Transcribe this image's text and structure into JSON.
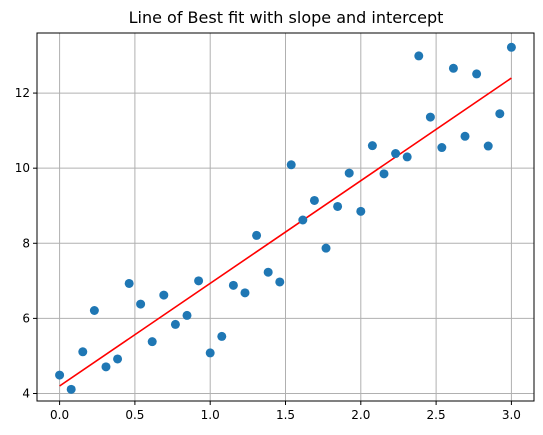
{
  "chart_data": {
    "type": "scatter",
    "title": "Line of Best fit with slope and intercept",
    "xlabel": "",
    "ylabel": "",
    "xlim": [
      -0.15,
      3.15
    ],
    "ylim": [
      3.8,
      13.6
    ],
    "grid": true,
    "x_ticks": [
      0.0,
      0.5,
      1.0,
      1.5,
      2.0,
      2.5,
      3.0
    ],
    "x_tick_labels": [
      "0.0",
      "0.5",
      "1.0",
      "1.5",
      "2.0",
      "2.5",
      "3.0"
    ],
    "y_ticks": [
      4,
      6,
      8,
      10,
      12
    ],
    "y_tick_labels": [
      "4",
      "6",
      "8",
      "10",
      "12"
    ],
    "series": [
      {
        "kind": "scatter",
        "color": "#1f77b4",
        "x": [
          0.0,
          0.077,
          0.154,
          0.231,
          0.308,
          0.385,
          0.462,
          0.538,
          0.615,
          0.692,
          0.769,
          0.846,
          0.923,
          1.0,
          1.077,
          1.154,
          1.231,
          1.308,
          1.385,
          1.462,
          1.538,
          1.615,
          1.692,
          1.769,
          1.846,
          1.923,
          2.0,
          2.077,
          2.154,
          2.231,
          2.308,
          2.385,
          2.462,
          2.538,
          2.615,
          2.692,
          2.769,
          2.846,
          2.923,
          3.0
        ],
        "y": [
          4.49,
          4.11,
          5.11,
          6.21,
          4.71,
          4.92,
          6.93,
          6.38,
          5.38,
          6.62,
          5.84,
          6.08,
          7.0,
          5.08,
          5.52,
          6.88,
          6.68,
          8.21,
          7.23,
          6.97,
          10.09,
          8.62,
          9.14,
          7.87,
          8.98,
          9.87,
          8.85,
          10.6,
          9.85,
          10.39,
          10.3,
          12.99,
          11.36,
          10.55,
          12.66,
          10.85,
          12.51,
          10.59,
          11.45,
          13.22
        ]
      },
      {
        "kind": "line",
        "color": "#ff0000",
        "x": [
          0.0,
          3.0
        ],
        "y": [
          4.2,
          12.4
        ]
      }
    ]
  }
}
